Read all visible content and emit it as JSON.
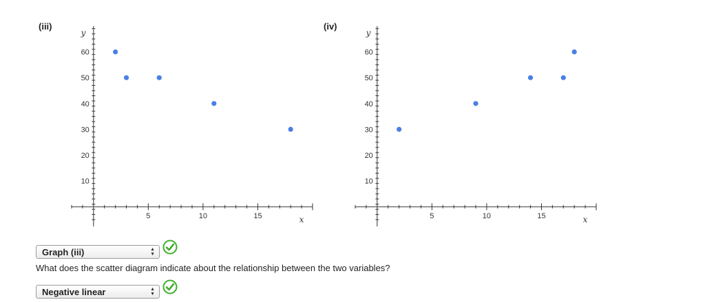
{
  "chart_data": [
    {
      "type": "scatter",
      "panel_label": "(iii)",
      "xlabel": "x",
      "ylabel": "y",
      "xlim": [
        -2,
        20
      ],
      "ylim": [
        -5,
        70
      ],
      "x_ticks": [
        5,
        10,
        15
      ],
      "y_ticks": [
        10,
        20,
        30,
        40,
        50,
        60
      ],
      "points": [
        {
          "x": 2,
          "y": 60
        },
        {
          "x": 3,
          "y": 50
        },
        {
          "x": 6,
          "y": 50
        },
        {
          "x": 11,
          "y": 40
        },
        {
          "x": 18,
          "y": 30
        }
      ],
      "point_color": "#4a7fe6",
      "grid": false
    },
    {
      "type": "scatter",
      "panel_label": "(iv)",
      "xlabel": "x",
      "ylabel": "y",
      "xlim": [
        -2,
        20
      ],
      "ylim": [
        -5,
        70
      ],
      "x_ticks": [
        5,
        10,
        15
      ],
      "y_ticks": [
        10,
        20,
        30,
        40,
        50,
        60
      ],
      "points": [
        {
          "x": 2,
          "y": 30
        },
        {
          "x": 9,
          "y": 40
        },
        {
          "x": 14,
          "y": 50
        },
        {
          "x": 17,
          "y": 50
        },
        {
          "x": 18,
          "y": 60
        }
      ],
      "point_color": "#4a7fe6",
      "grid": false
    }
  ],
  "answers": {
    "graph_select": "Graph (iii)",
    "question": "What does the scatter diagram indicate about the relationship between the two variables?",
    "relationship_select": "Negative linear"
  },
  "colors": {
    "check_green": "#3fae2a"
  }
}
